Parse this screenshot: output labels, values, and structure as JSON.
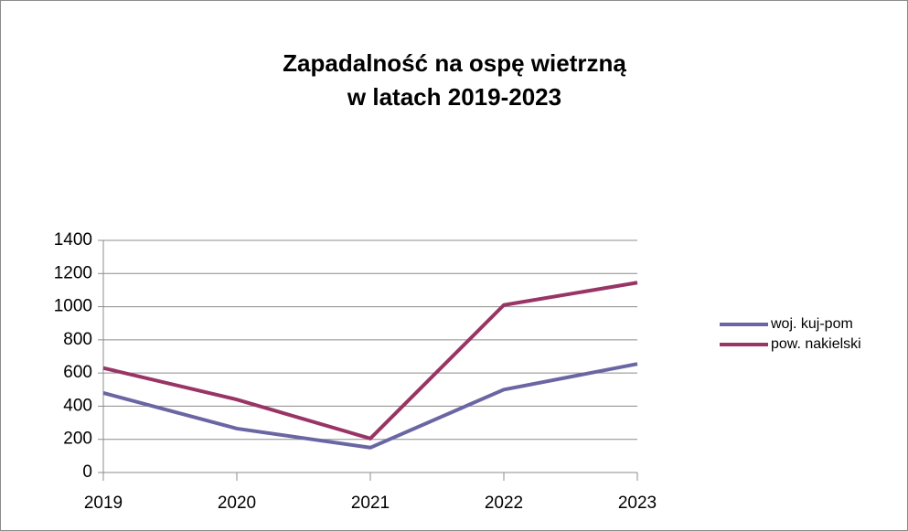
{
  "chart_data": {
    "type": "line",
    "title": [
      "Zapadalność na ospę wietrzną",
      "w latach 2019-2023"
    ],
    "categories": [
      "2019",
      "2020",
      "2021",
      "2022",
      "2023"
    ],
    "series": [
      {
        "name": "woj. kuj-pom",
        "color": "#6a66a3",
        "values": [
          480,
          265,
          150,
          500,
          655
        ]
      },
      {
        "name": "pow. nakielski",
        "color": "#983565",
        "values": [
          630,
          440,
          205,
          1010,
          1145
        ]
      }
    ],
    "ylim": [
      0,
      1400
    ],
    "yticks": [
      0,
      200,
      400,
      600,
      800,
      1000,
      1200,
      1400
    ],
    "grid": true,
    "legend": "right"
  }
}
